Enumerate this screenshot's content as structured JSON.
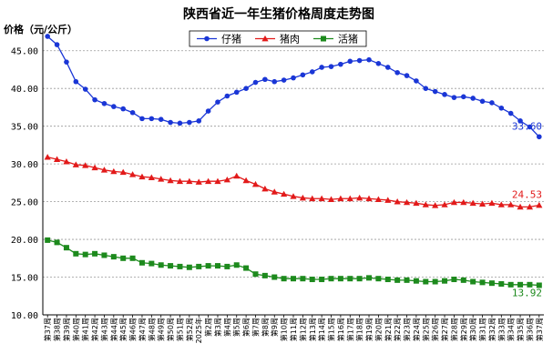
{
  "chart_data": {
    "type": "line",
    "title": "陕西省近一年生猪价格周度走势图",
    "ylabel": "价格（元/公斤）",
    "ylim": [
      10,
      47.5
    ],
    "yticks": [
      "10.00",
      "15.00",
      "20.00",
      "25.00",
      "30.00",
      "35.00",
      "40.00",
      "45.00"
    ],
    "grid": true,
    "legend_position": "top-center",
    "categories": [
      "第37周",
      "第38周",
      "第39周",
      "第40周",
      "第41周",
      "第42周",
      "第43周",
      "第44周",
      "第45周",
      "第46周",
      "第47周",
      "第48周",
      "第49周",
      "第50周",
      "第51周",
      "第52周",
      "2025年",
      "第2周",
      "第3周",
      "第4周",
      "第5周",
      "第6周",
      "第7周",
      "第8周",
      "第9周",
      "第10周",
      "第11周",
      "第12周",
      "第13周",
      "第14周",
      "第15周",
      "第16周",
      "第17周",
      "第18周",
      "第19周",
      "第20周",
      "第21周",
      "第22周",
      "第23周",
      "第24周",
      "第25周",
      "第26周",
      "第27周",
      "第28周",
      "第29周",
      "第30周",
      "第31周",
      "第32周",
      "第33周",
      "第34周",
      "第35周",
      "第36周",
      "第37周"
    ],
    "series": [
      {
        "name": "仔猪",
        "color": "#1a36d6",
        "marker": "diamond",
        "values": [
          46.9,
          45.8,
          43.5,
          40.9,
          39.9,
          38.5,
          38.0,
          37.6,
          37.3,
          36.8,
          36.0,
          36.0,
          35.9,
          35.5,
          35.4,
          35.5,
          35.7,
          37.0,
          38.2,
          39.0,
          39.5,
          40.0,
          40.8,
          41.2,
          40.9,
          41.1,
          41.4,
          41.8,
          42.2,
          42.8,
          42.9,
          43.2,
          43.6,
          43.7,
          43.8,
          43.3,
          42.8,
          42.1,
          41.7,
          41.0,
          40.0,
          39.6,
          39.2,
          38.8,
          38.9,
          38.7,
          38.3,
          38.1,
          37.4,
          36.7,
          35.7,
          34.9,
          33.6
        ],
        "end_label": "33.60"
      },
      {
        "name": "猪肉",
        "color": "#e21a1a",
        "marker": "triangle",
        "values": [
          30.9,
          30.6,
          30.3,
          29.9,
          29.8,
          29.5,
          29.2,
          29.0,
          28.9,
          28.6,
          28.3,
          28.2,
          28.0,
          27.8,
          27.7,
          27.7,
          27.6,
          27.7,
          27.7,
          27.9,
          28.4,
          27.8,
          27.3,
          26.7,
          26.3,
          26.0,
          25.7,
          25.5,
          25.4,
          25.4,
          25.3,
          25.4,
          25.4,
          25.5,
          25.4,
          25.3,
          25.2,
          25.0,
          24.9,
          24.8,
          24.6,
          24.5,
          24.6,
          24.9,
          24.9,
          24.8,
          24.7,
          24.8,
          24.6,
          24.6,
          24.3,
          24.3,
          24.53
        ],
        "end_label": "24.53"
      },
      {
        "name": "活猪",
        "color": "#1d8a1d",
        "marker": "square",
        "values": [
          19.9,
          19.6,
          18.9,
          18.1,
          18.0,
          18.1,
          17.9,
          17.7,
          17.5,
          17.5,
          16.9,
          16.8,
          16.6,
          16.5,
          16.4,
          16.3,
          16.4,
          16.5,
          16.5,
          16.4,
          16.6,
          16.2,
          15.4,
          15.2,
          15.0,
          14.8,
          14.8,
          14.8,
          14.7,
          14.7,
          14.8,
          14.8,
          14.8,
          14.8,
          14.9,
          14.8,
          14.7,
          14.6,
          14.6,
          14.5,
          14.4,
          14.4,
          14.5,
          14.7,
          14.6,
          14.4,
          14.3,
          14.2,
          14.1,
          14.0,
          14.0,
          14.0,
          13.92
        ],
        "end_label": "13.92"
      }
    ]
  }
}
